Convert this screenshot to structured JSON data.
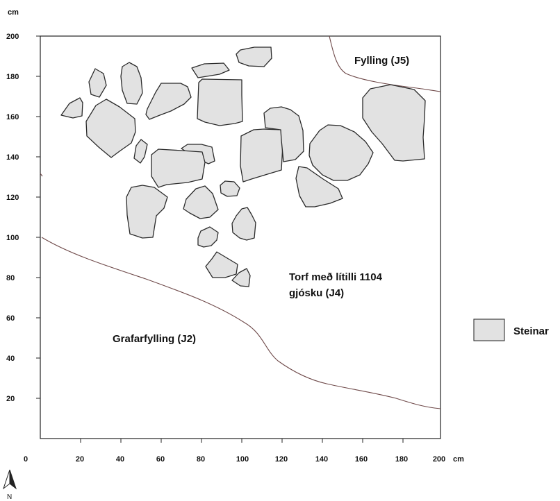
{
  "units": {
    "y_axis": "cm",
    "x_axis": "cm"
  },
  "x_ticks": [
    "0",
    "20",
    "40",
    "60",
    "80",
    "100",
    "120",
    "140",
    "160",
    "180",
    "200"
  ],
  "y_ticks": [
    "20",
    "40",
    "60",
    "80",
    "100",
    "120",
    "140",
    "160",
    "180",
    "200"
  ],
  "labels": {
    "fylling": "Fylling (J5)",
    "torf_line1": "Torf með lítilli 1104",
    "torf_line2": "gjósku (J4)",
    "grafarfylling": "Grafarfylling (J2)"
  },
  "legend": {
    "label": "Steinar"
  },
  "north": {
    "label": "N"
  },
  "colors": {
    "stone_fill": "#e2e2e2",
    "stone_stroke": "#2a2a2a",
    "boundary": "#6f4a4a",
    "frame": "#222222"
  }
}
